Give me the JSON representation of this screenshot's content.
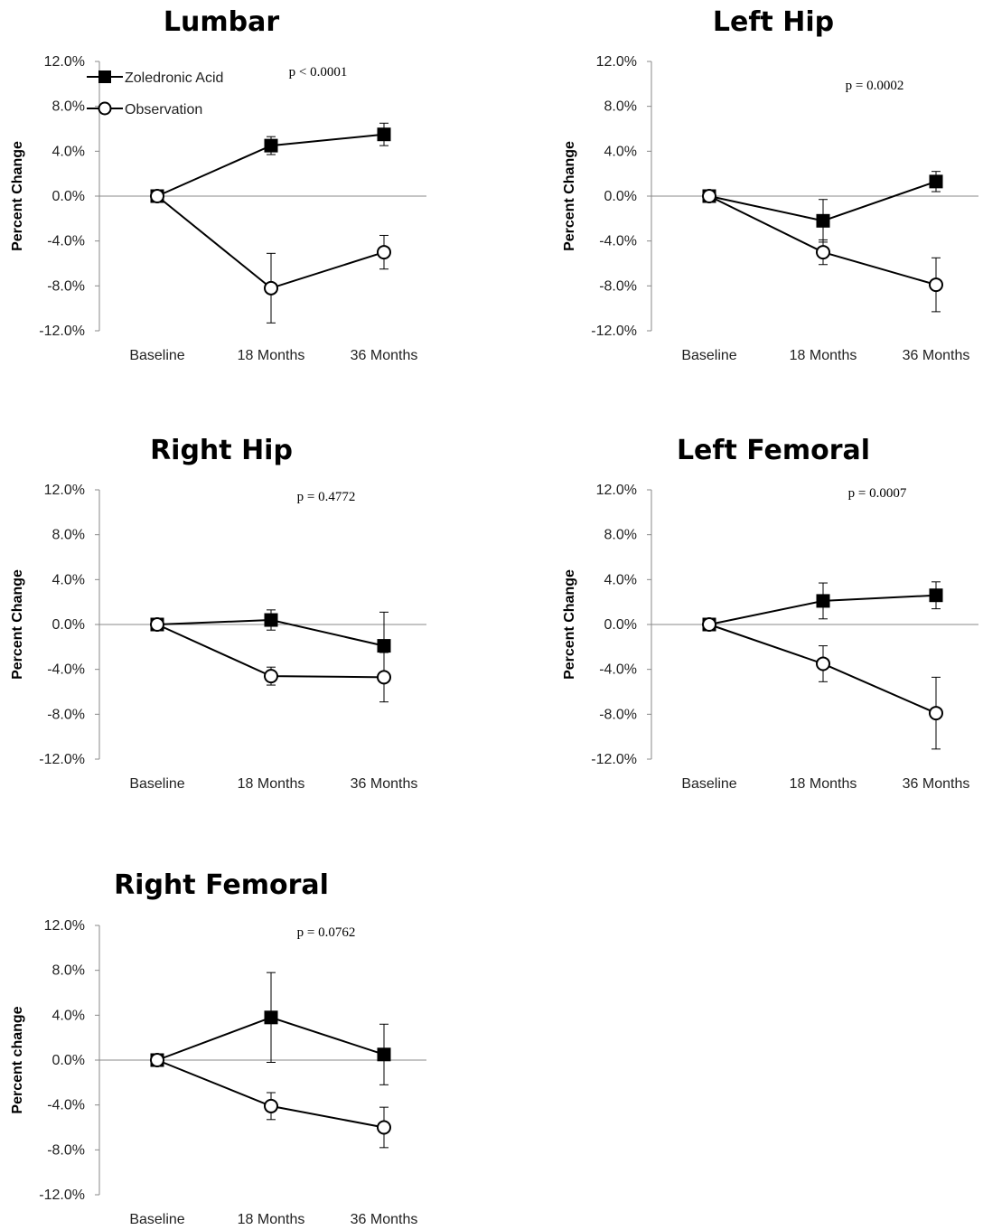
{
  "legend": {
    "zoledronic_label": "Zoledronic Acid",
    "observation_label": "Observation"
  },
  "chart_data": [
    {
      "type": "line",
      "title": "Lumbar",
      "ylabel": "Percent Change",
      "p_value": "p < 0.0001",
      "categories": [
        "Baseline",
        "18 Months",
        "36 Months"
      ],
      "y_ticks": [
        "12.0%",
        "8.0%",
        "4.0%",
        "0.0%",
        "-4.0%",
        "-8.0%",
        "-12.0%"
      ],
      "ylim": [
        -12,
        12
      ],
      "series": [
        {
          "name": "Zoledronic Acid",
          "marker": "filled-square",
          "values": [
            0,
            4.5,
            5.5
          ],
          "errors": [
            0,
            0.8,
            1.0
          ]
        },
        {
          "name": "Observation",
          "marker": "open-circle",
          "values": [
            0,
            -8.2,
            -5.0
          ],
          "errors": [
            0,
            3.1,
            1.5
          ]
        }
      ]
    },
    {
      "type": "line",
      "title": "Left Hip",
      "ylabel": "Percent Change",
      "p_value": "p = 0.0002",
      "categories": [
        "Baseline",
        "18 Months",
        "36 Months"
      ],
      "y_ticks": [
        "12.0%",
        "8.0%",
        "4.0%",
        "0.0%",
        "-4.0%",
        "-8.0%",
        "-12.0%"
      ],
      "ylim": [
        -12,
        12
      ],
      "series": [
        {
          "name": "Zoledronic Acid",
          "marker": "filled-square",
          "values": [
            0,
            -2.2,
            1.3
          ],
          "errors": [
            0,
            1.9,
            0.9
          ]
        },
        {
          "name": "Observation",
          "marker": "open-circle",
          "values": [
            0,
            -5.0,
            -7.9
          ],
          "errors": [
            0,
            1.1,
            2.4
          ]
        }
      ]
    },
    {
      "type": "line",
      "title": "Right Hip",
      "ylabel": "Percent Change",
      "p_value": "p = 0.4772",
      "categories": [
        "Baseline",
        "18 Months",
        "36 Months"
      ],
      "y_ticks": [
        "12.0%",
        "8.0%",
        "4.0%",
        "0.0%",
        "-4.0%",
        "-8.0%",
        "-12.0%"
      ],
      "ylim": [
        -12,
        12
      ],
      "series": [
        {
          "name": "Zoledronic Acid",
          "marker": "filled-square",
          "values": [
            0,
            0.4,
            -1.9
          ],
          "errors": [
            0,
            0.9,
            3.0
          ]
        },
        {
          "name": "Observation",
          "marker": "open-circle",
          "values": [
            0,
            -4.6,
            -4.7
          ],
          "errors": [
            0,
            0.8,
            2.2
          ]
        }
      ]
    },
    {
      "type": "line",
      "title": "Left Femoral",
      "ylabel": "Percent Change",
      "p_value": "p = 0.0007",
      "categories": [
        "Baseline",
        "18 Months",
        "36 Months"
      ],
      "y_ticks": [
        "12.0%",
        "8.0%",
        "4.0%",
        "0.0%",
        "-4.0%",
        "-8.0%",
        "-12.0%"
      ],
      "ylim": [
        -12,
        12
      ],
      "series": [
        {
          "name": "Zoledronic Acid",
          "marker": "filled-square",
          "values": [
            0,
            2.1,
            2.6
          ],
          "errors": [
            0,
            1.6,
            1.2
          ]
        },
        {
          "name": "Observation",
          "marker": "open-circle",
          "values": [
            0,
            -3.5,
            -7.9
          ],
          "errors": [
            0,
            1.6,
            3.2
          ]
        }
      ]
    },
    {
      "type": "line",
      "title": "Right Femoral",
      "ylabel": "Percent change",
      "p_value": "p = 0.0762",
      "categories": [
        "Baseline",
        "18 Months",
        "36 Months"
      ],
      "y_ticks": [
        "12.0%",
        "8.0%",
        "4.0%",
        "0.0%",
        "-4.0%",
        "-8.0%",
        "-12.0%"
      ],
      "ylim": [
        -12,
        12
      ],
      "series": [
        {
          "name": "Zoledronic Acid",
          "marker": "filled-square",
          "values": [
            0,
            3.8,
            0.5
          ],
          "errors": [
            0,
            4.0,
            2.7
          ]
        },
        {
          "name": "Observation",
          "marker": "open-circle",
          "values": [
            0,
            -4.1,
            -6.0
          ],
          "errors": [
            0,
            1.2,
            1.8
          ]
        }
      ]
    }
  ]
}
